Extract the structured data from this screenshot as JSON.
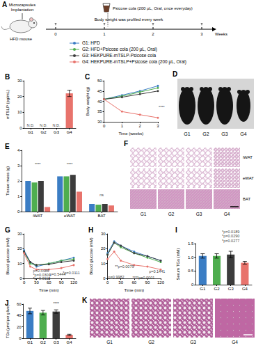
{
  "schematic": {
    "title": "A",
    "implant_label": [
      "Microcapsules",
      "Implantation"
    ],
    "mouse_label": "HFD mouse",
    "drink_label": "Psicose cola (200 μL, Oral, once everyday)",
    "note": "Body weight was profiled every week",
    "timeline": [
      "0",
      "1",
      "2",
      "3"
    ],
    "timeline_unit": "Weeks"
  },
  "photo": {
    "title": "D",
    "labels": [
      "G1",
      "G2",
      "G3",
      "G4"
    ]
  },
  "histology_adipose": {
    "title": "F",
    "rows": [
      "iWAT",
      "eWAT",
      "BAT"
    ],
    "columns": [
      "G1",
      "G2",
      "G3",
      "G4"
    ]
  },
  "histology_liver": {
    "title": "K",
    "columns": [
      "G1",
      "G2",
      "G3",
      "G4"
    ]
  },
  "chart_data": [
    {
      "title": "B",
      "type": "bar",
      "ylabel": "mTSLP (pg/mL)",
      "categories": [
        "G1",
        "G2",
        "G3",
        "G4"
      ],
      "values": [
        null,
        null,
        null,
        22
      ],
      "errors": [
        null,
        null,
        null,
        2
      ],
      "colors": [
        "#3b7dc4",
        "#4fae4f",
        "#3c3c3c",
        "#e8736c"
      ],
      "ylim": [
        0,
        30
      ],
      "yticks": [
        0,
        10,
        20,
        30
      ],
      "annotations": [
        {
          "x": "G1",
          "y": 0,
          "text": "N.D."
        },
        {
          "x": "G2",
          "y": 0,
          "text": "N.D."
        },
        {
          "x": "G3",
          "y": 0,
          "text": "N.D."
        }
      ]
    },
    {
      "title": "C",
      "type": "line",
      "xlabel": "Time (weeks)",
      "ylabel": "Body weight (g)",
      "x": [
        0,
        1,
        2,
        3
      ],
      "xlim": [
        0,
        3
      ],
      "xticks": [
        0,
        1,
        2,
        3
      ],
      "ylim": [
        30,
        50
      ],
      "yticks": [
        30,
        35,
        40,
        45,
        50
      ],
      "series": [
        {
          "name": "G1: HFD",
          "color": "#3b7dc4",
          "values": [
            41,
            43,
            45,
            47.5
          ]
        },
        {
          "name": "G2: HFD+Psicose cola (200 μL, Oral)",
          "color": "#4fae4f",
          "values": [
            41,
            42.5,
            44.5,
            46.5
          ]
        },
        {
          "name": "G3: HEKPURE-mTSLP-Psicose cola",
          "color": "#3c3c3c",
          "values": [
            41,
            42,
            43.5,
            45
          ]
        },
        {
          "name": "G4: HEKPURE-mTSLP+Psicose cola (200 μL, Oral)",
          "color": "#e8736c",
          "values": [
            41,
            35,
            33.5,
            32
          ]
        }
      ],
      "annotations": [
        {
          "x": 3,
          "y": 37,
          "text": "****"
        }
      ]
    },
    {
      "title": "E",
      "type": "bar",
      "ylabel": "Tissue mass (g)",
      "categories": [
        "iWAT",
        "eWAT",
        "BAT"
      ],
      "series": [
        {
          "color": "#3b7dc4",
          "values": [
            2.0,
            2.3,
            0.5
          ]
        },
        {
          "color": "#4fae4f",
          "values": [
            1.9,
            2.3,
            0.45
          ]
        },
        {
          "color": "#3c3c3c",
          "values": [
            2.0,
            2.4,
            0.5
          ]
        },
        {
          "color": "#e8736c",
          "values": [
            0.3,
            1.3,
            0.4
          ]
        }
      ],
      "ylim": [
        0,
        4
      ],
      "yticks": [
        0,
        1,
        2,
        3,
        4
      ],
      "annotations": [
        {
          "x": "iWAT",
          "y": 2.9,
          "text": "****"
        },
        {
          "x": "eWAT",
          "y": 2.9,
          "text": "****"
        },
        {
          "x": "BAT",
          "y": 0.9,
          "text": "ns"
        }
      ]
    },
    {
      "title": "G",
      "type": "line",
      "xlabel": "Time (min)",
      "ylabel": "Blood glucose (mM)",
      "x": [
        0,
        15,
        30,
        60,
        90,
        120
      ],
      "xlim": [
        0,
        120
      ],
      "xticks": [
        0,
        30,
        60,
        90,
        120
      ],
      "ylim": [
        0,
        30
      ],
      "yticks": [
        0,
        10,
        20,
        30
      ],
      "series": [
        {
          "color": "#3b7dc4",
          "values": [
            19,
            11,
            8,
            10,
            12,
            14
          ]
        },
        {
          "color": "#4fae4f",
          "values": [
            18,
            10,
            9,
            10,
            12,
            13
          ]
        },
        {
          "color": "#3c3c3c",
          "values": [
            18,
            11,
            9,
            9.5,
            11,
            12
          ]
        },
        {
          "color": "#e8736c",
          "values": [
            17,
            8,
            6,
            6,
            7,
            9
          ]
        }
      ],
      "annotations": [
        {
          "x": 20,
          "y": 5,
          "text": "p=0.4486"
        },
        {
          "x": 20,
          "y": 2.5,
          "text": "*p=0.0300"
        },
        {
          "x": 20,
          "y": 0,
          "text": "*p=0.0118"
        },
        {
          "x": 60,
          "y": 3,
          "text": "p=0.5444"
        },
        {
          "x": 92,
          "y": 4,
          "text": "*p=0.0111"
        }
      ]
    },
    {
      "title": "H",
      "type": "line",
      "xlabel": "Time (min)",
      "ylabel": "Blood glucose (mM)",
      "x": [
        0,
        15,
        30,
        60,
        90,
        120
      ],
      "xlim": [
        0,
        120
      ],
      "xticks": [
        0,
        30,
        60,
        90,
        120
      ],
      "ylim": [
        0,
        30
      ],
      "yticks": [
        0,
        10,
        20,
        30
      ],
      "series": [
        {
          "color": "#3b7dc4",
          "values": [
            17,
            25,
            22,
            18,
            15,
            12
          ]
        },
        {
          "color": "#4fae4f",
          "values": [
            16,
            24,
            21,
            17,
            14,
            11
          ]
        },
        {
          "color": "#3c3c3c",
          "values": [
            16,
            24,
            22,
            17,
            15,
            12
          ]
        },
        {
          "color": "#e8736c",
          "values": [
            13,
            18,
            12,
            9,
            8,
            6
          ]
        }
      ],
      "annotations": [
        {
          "x": 0,
          "y": 1,
          "text": "p=0.9982"
        },
        {
          "x": 15,
          "y": 8,
          "text": "**p=0.0079"
        },
        {
          "x": 55,
          "y": 0.5,
          "text": "****p=0.0001"
        },
        {
          "x": 92,
          "y": 4.5,
          "text": "p=0.1441"
        }
      ]
    },
    {
      "title": "I",
      "type": "bar",
      "ylabel": "Serum TGs (mM)",
      "categories": [
        "G1",
        "G2",
        "G3",
        "G4"
      ],
      "values": [
        1.05,
        1.05,
        1.1,
        0.8
      ],
      "errors": [
        0.08,
        0.08,
        0.12,
        0.05
      ],
      "colors": [
        "#3b7dc4",
        "#4fae4f",
        "#3c3c3c",
        "#e8736c"
      ],
      "ylim": [
        0,
        1.5
      ],
      "yticks": [
        0,
        0.5,
        {
          "value": 1,
          "label": "1.0"
        },
        1.5
      ],
      "annotations": [
        {
          "x": "G3",
          "y": 1.84,
          "text": "*p=0.0189"
        },
        {
          "x": "G3",
          "y": 1.67,
          "text": "*p=0.0290"
        },
        {
          "x": "G3",
          "y": 1.5,
          "text": "*p=0.0277"
        }
      ]
    },
    {
      "title": "J",
      "type": "bar",
      "ylabel": "TGs (μmol per g liver)",
      "categories": [
        "G1",
        "G2",
        "G3",
        "G4"
      ],
      "values": [
        48,
        45,
        47,
        6
      ],
      "errors": [
        5,
        4,
        3,
        1
      ],
      "colors": [
        "#3b7dc4",
        "#4fae4f",
        "#3c3c3c",
        "#e8736c"
      ],
      "ylim": [
        0,
        60
      ],
      "yticks": [
        0,
        20,
        40,
        60
      ],
      "annotations": [
        {
          "x": "G3",
          "y": 56,
          "text": "****"
        }
      ]
    }
  ]
}
